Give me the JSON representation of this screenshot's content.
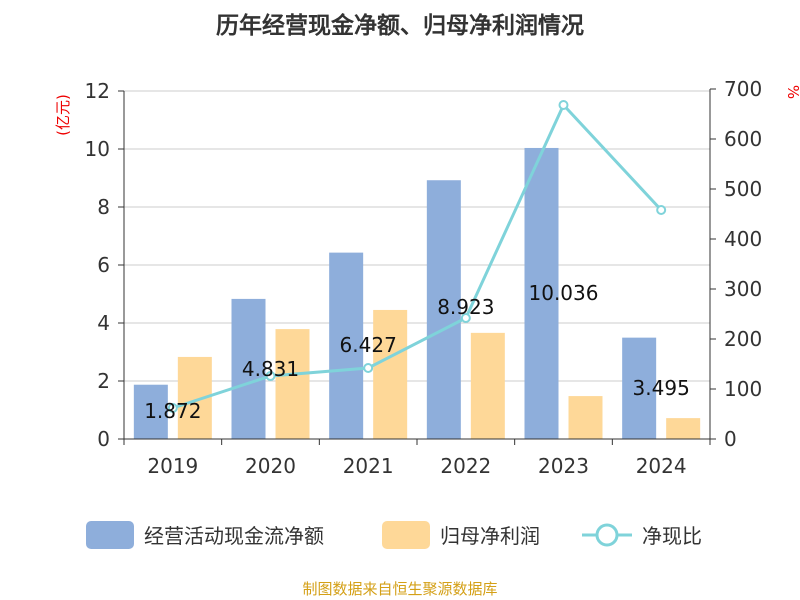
{
  "chart_data": {
    "type": "bar",
    "title": "历年经营现金净额、归母净利润情况",
    "ylabel_left": "(亿元)",
    "ylabel_right": "%",
    "categories": [
      "2019",
      "2020",
      "2021",
      "2022",
      "2023",
      "2024"
    ],
    "ylim_left": [
      0,
      12
    ],
    "yticks_left": [
      "0",
      "2",
      "4",
      "6",
      "8",
      "10",
      "12"
    ],
    "ylim_right": [
      0,
      700
    ],
    "yticks_right": [
      "0",
      "100",
      "200",
      "300",
      "400",
      "500",
      "600",
      "700"
    ],
    "grid": true,
    "legend_position": "bottom",
    "series": [
      {
        "name": "经营活动现金流净额",
        "type": "bar",
        "axis": "left",
        "color": "#8eaedb",
        "values": [
          1.872,
          4.831,
          6.427,
          8.923,
          10.036,
          3.495
        ],
        "labels": [
          "1.872",
          "4.831",
          "6.427",
          "8.923",
          "10.036",
          "3.495"
        ]
      },
      {
        "name": "归母净利润",
        "type": "bar",
        "axis": "left",
        "color": "#fed898",
        "values": [
          2.83,
          3.79,
          4.45,
          3.66,
          1.48,
          0.72
        ]
      },
      {
        "name": "净现比",
        "type": "line",
        "axis": "right",
        "color": "#7fd3da",
        "values": [
          62,
          126,
          142,
          242,
          668,
          458
        ]
      }
    ]
  },
  "source": "制图数据来自恒生聚源数据库"
}
